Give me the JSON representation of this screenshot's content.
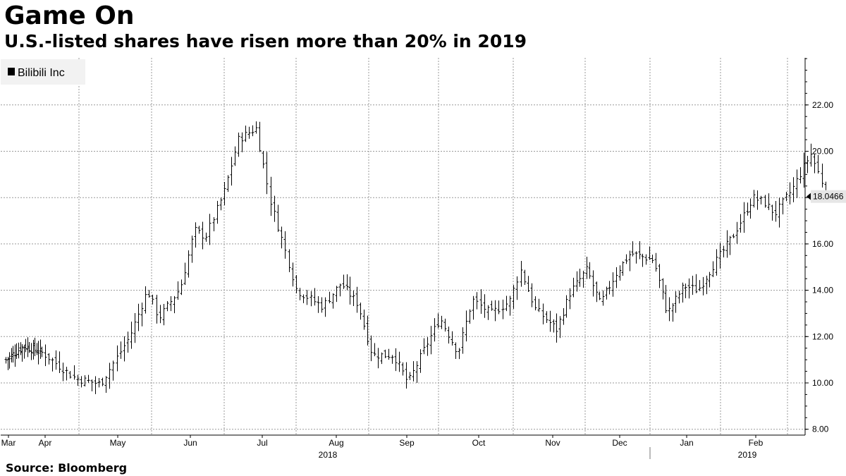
{
  "header": {
    "title": "Game On",
    "subtitle": "U.S.-listed shares have risen more than 20% in 2019"
  },
  "footer": {
    "source": "Source: Bloomberg"
  },
  "colors": {
    "bars": "#000000",
    "grid": "#9a9a9a",
    "legend_bg": "#f2f2f2",
    "last_price_bg": "#e6e6e6"
  },
  "chart_data": {
    "type": "ohlc-bar",
    "title": "Game On",
    "subtitle": "U.S.-listed shares have risen more than 20% in 2019",
    "legend": [
      {
        "name": "Bilibili Inc",
        "placement": "top-left"
      }
    ],
    "ylim": [
      8,
      24
    ],
    "yticks": [
      8,
      10,
      12,
      14,
      16,
      18,
      20,
      22
    ],
    "ytick_labels": [
      "8.00",
      "10.00",
      "12.00",
      "14.00",
      "16.00",
      "18.00",
      "20.00",
      "22.00"
    ],
    "month_labels": [
      "Mar",
      "Apr",
      "May",
      "Jun",
      "Jul",
      "Aug",
      "Sep",
      "Oct",
      "Nov",
      "Dec",
      "Jan",
      "Feb"
    ],
    "year_labels": [
      {
        "label": "2018",
        "under_month": 5
      },
      {
        "label": "2019",
        "under_month": 11
      }
    ],
    "last_price": {
      "value": 18.0466,
      "label": "18.0466"
    },
    "grid": true,
    "series": [
      {
        "name": "Bilibili Inc",
        "close_path": [
          [
            0,
            11.0
          ],
          [
            0.5,
            11.6
          ],
          [
            1,
            11.3
          ],
          [
            1.45,
            10.2
          ],
          [
            1.8,
            9.95
          ],
          [
            2.2,
            12.0
          ],
          [
            2.45,
            14.0
          ],
          [
            2.6,
            12.8
          ],
          [
            2.9,
            14.1
          ],
          [
            3.1,
            16.6
          ],
          [
            3.25,
            16.3
          ],
          [
            3.5,
            18.2
          ],
          [
            3.7,
            20.5
          ],
          [
            3.95,
            21.0
          ],
          [
            4.15,
            17.8
          ],
          [
            4.3,
            16.2
          ],
          [
            4.5,
            14.0
          ],
          [
            4.85,
            13.3
          ],
          [
            5.1,
            14.3
          ],
          [
            5.35,
            13.4
          ],
          [
            5.55,
            11.2
          ],
          [
            5.85,
            11.2
          ],
          [
            6.05,
            10.0
          ],
          [
            6.3,
            11.6
          ],
          [
            6.5,
            12.8
          ],
          [
            6.75,
            11.3
          ],
          [
            6.95,
            13.6
          ],
          [
            7.2,
            13.0
          ],
          [
            7.45,
            13.5
          ],
          [
            7.6,
            14.9
          ],
          [
            7.8,
            13.2
          ],
          [
            8.1,
            12.3
          ],
          [
            8.3,
            13.9
          ],
          [
            8.55,
            14.9
          ],
          [
            8.75,
            13.4
          ],
          [
            9.0,
            14.8
          ],
          [
            9.2,
            15.6
          ],
          [
            9.55,
            15.3
          ],
          [
            9.75,
            13.0
          ],
          [
            10.0,
            14.2
          ],
          [
            10.2,
            14.0
          ],
          [
            10.45,
            15.2
          ],
          [
            10.7,
            16.3
          ],
          [
            11.0,
            18.0
          ],
          [
            11.15,
            17.8
          ],
          [
            11.3,
            17.3
          ],
          [
            11.55,
            18.4
          ],
          [
            11.8,
            19.9
          ],
          [
            11.95,
            18.7
          ],
          [
            12.05,
            18.0466
          ]
        ]
      }
    ]
  }
}
